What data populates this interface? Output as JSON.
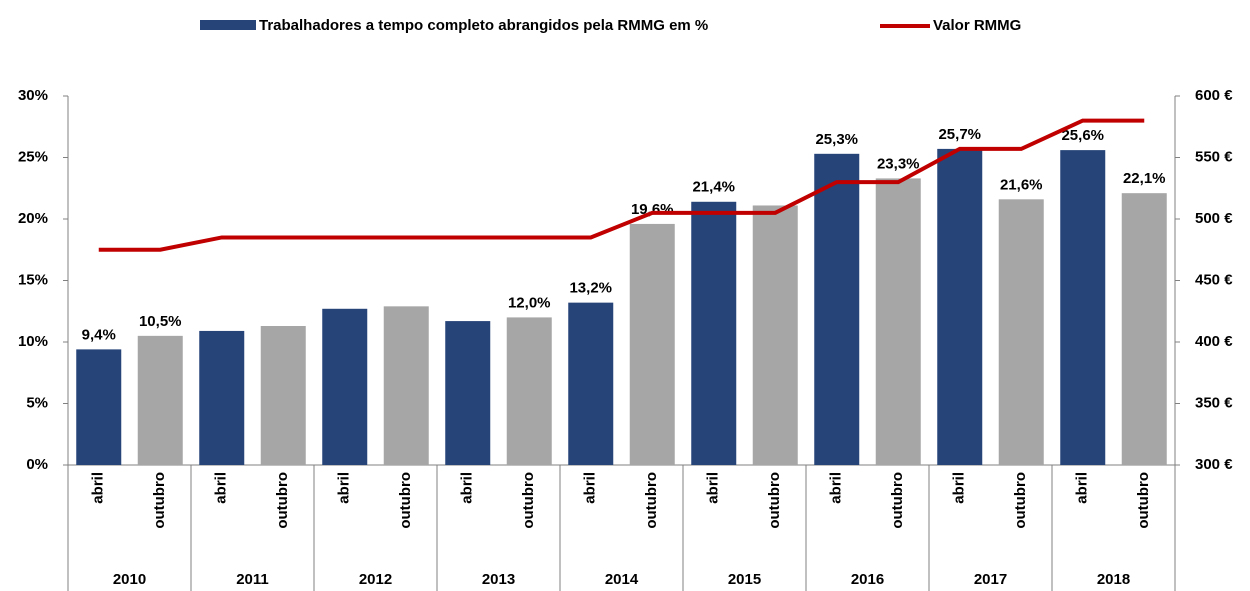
{
  "chart_data": {
    "type": "bar-line",
    "categories": [
      "abril",
      "outubro",
      "abril",
      "outubro",
      "abril",
      "outubro",
      "abril",
      "outubro",
      "abril",
      "outubro",
      "abril",
      "outubro",
      "abril",
      "outubro",
      "abril",
      "outubro",
      "abril",
      "outubro"
    ],
    "groups": [
      "2010",
      "2011",
      "2012",
      "2013",
      "2014",
      "2015",
      "2016",
      "2017",
      "2018"
    ],
    "series": [
      {
        "name": "Trabalhadores a tempo completo abrangidos pela RMMG em %",
        "type": "bar",
        "color": "#264478",
        "colors": [
          "#264478",
          "#a6a6a6",
          "#264478",
          "#a6a6a6",
          "#264478",
          "#a6a6a6",
          "#264478",
          "#a6a6a6",
          "#264478",
          "#a6a6a6",
          "#264478",
          "#a6a6a6",
          "#264478",
          "#a6a6a6",
          "#264478",
          "#a6a6a6",
          "#264478",
          "#a6a6a6"
        ],
        "values": [
          9.4,
          10.5,
          10.9,
          11.3,
          12.7,
          12.9,
          11.7,
          12.0,
          13.2,
          19.6,
          21.4,
          21.1,
          25.3,
          23.3,
          25.7,
          21.6,
          25.6,
          22.1
        ],
        "value_labels": [
          "9,4%",
          "10,5%",
          null,
          null,
          null,
          null,
          null,
          "12,0%",
          "13,2%",
          "19,6%",
          "21,4%",
          null,
          "25,3%",
          "23,3%",
          "25,7%",
          "21,6%",
          "25,6%",
          "22,1%"
        ]
      },
      {
        "name": "Valor RMMG",
        "type": "line",
        "axis": "y2",
        "color": "#c00000",
        "values": [
          475,
          475,
          485,
          485,
          485,
          485,
          485,
          485,
          485,
          505,
          505,
          505,
          530,
          530,
          557,
          557,
          580,
          580
        ]
      }
    ],
    "ylim": [
      0,
      30
    ],
    "yticks": [
      {
        "value": 0,
        "label": "0%"
      },
      {
        "value": 5,
        "label": "5%"
      },
      {
        "value": 10,
        "label": "10%"
      },
      {
        "value": 15,
        "label": "15%"
      },
      {
        "value": 20,
        "label": "20%"
      },
      {
        "value": 25,
        "label": "25%"
      },
      {
        "value": 30,
        "label": "30%"
      }
    ],
    "y2lim": [
      300,
      600
    ],
    "y2ticks": [
      {
        "value": 300,
        "label": "300 €"
      },
      {
        "value": 350,
        "label": "350 €"
      },
      {
        "value": 400,
        "label": "400 €"
      },
      {
        "value": 450,
        "label": "450 €"
      },
      {
        "value": 500,
        "label": "500 €"
      },
      {
        "value": 550,
        "label": "550 €"
      },
      {
        "value": 600,
        "label": "600 €"
      }
    ],
    "legend": "top"
  }
}
